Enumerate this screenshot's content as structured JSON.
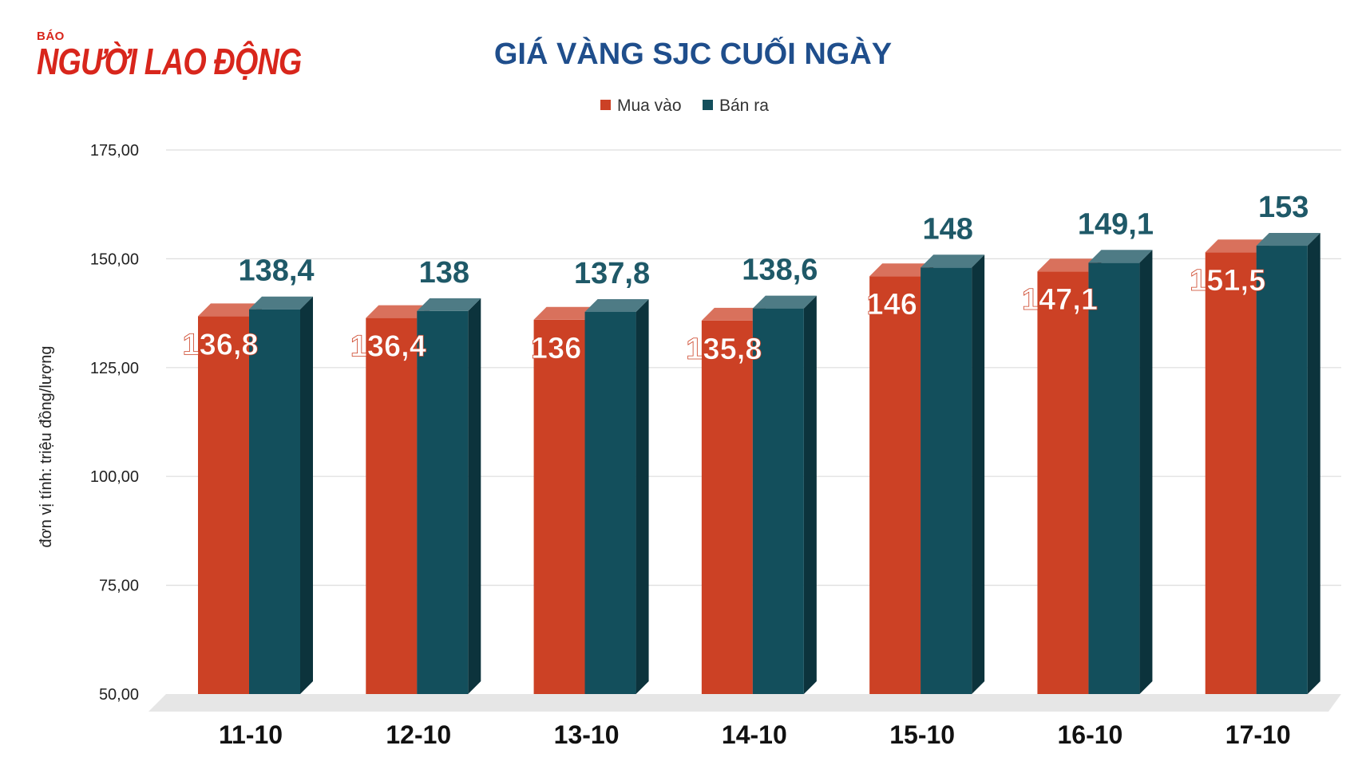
{
  "logo": {
    "small": "BÁO",
    "big": "NGƯỜI LAO ĐỘNG"
  },
  "colors": {
    "buy": "#cc4125",
    "sell": "#134f5c",
    "title": "#1f4e8c"
  },
  "chart_data": {
    "type": "bar",
    "title": "GIÁ VÀNG SJC CUỐI NGÀY",
    "ylabel": "đơn vị tính: triệu đồng/lượng",
    "xlabel": "",
    "categories": [
      "11-10",
      "12-10",
      "13-10",
      "14-10",
      "15-10",
      "16-10",
      "17-10"
    ],
    "series": [
      {
        "name": "Mua vào",
        "values": [
          136.8,
          136.4,
          136,
          135.8,
          146,
          147.1,
          151.5
        ],
        "labels": [
          "136,8",
          "136,4",
          "136",
          "135,8",
          "146",
          "147,1",
          "151,5"
        ]
      },
      {
        "name": "Bán ra",
        "values": [
          138.4,
          138,
          137.8,
          138.6,
          148,
          149.1,
          153
        ],
        "labels": [
          "138,4",
          "138",
          "137,8",
          "138,6",
          "148",
          "149,1",
          "153"
        ]
      }
    ],
    "ylim": [
      50,
      175
    ],
    "yticks": [
      50,
      75,
      100,
      125,
      150,
      175
    ],
    "ytick_labels": [
      "50,00",
      "75,00",
      "100,00",
      "125,00",
      "150,00",
      "175,00"
    ],
    "grid": true,
    "legend": "top-center",
    "style": "3d"
  }
}
